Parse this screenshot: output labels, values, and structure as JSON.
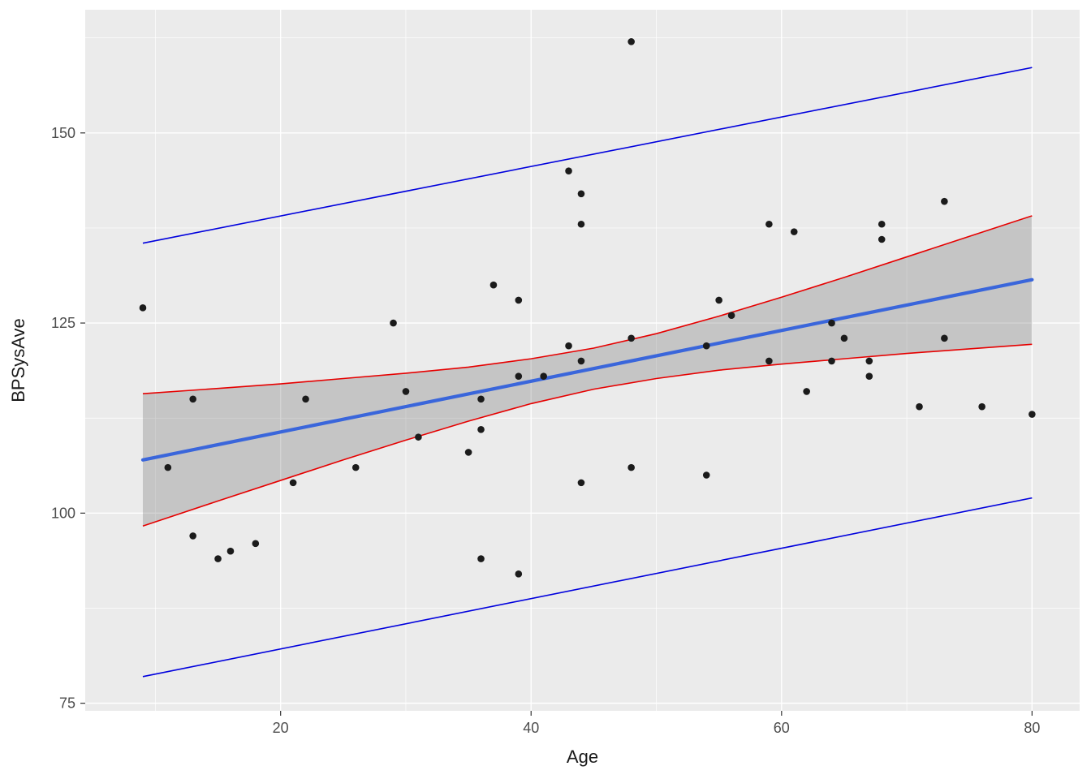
{
  "figure": {
    "background": "#FFFFFF",
    "panel_background": "#EBEBEB",
    "grid_major_color": "#FFFFFF",
    "grid_minor_color": "#FFFFFF",
    "tick_mark_color": "#333333",
    "tick_label_color": "#4D4D4D",
    "axis_title_color": "#1A1A1A"
  },
  "chart_data": {
    "type": "scatter",
    "title": "",
    "xlabel": "Age",
    "ylabel": "BPSysAve",
    "xlim": [
      4.4,
      83.8
    ],
    "ylim": [
      74.0,
      166.2
    ],
    "x_ticks": [
      20,
      40,
      60,
      80
    ],
    "y_ticks": [
      75,
      100,
      125,
      150
    ],
    "x_minor_ticks": [
      10,
      30,
      50,
      70
    ],
    "y_minor_ticks": [
      87.5,
      112.5,
      137.5,
      162.5
    ],
    "grid": true,
    "legend": "none",
    "point_color": "#1B1B1B",
    "point_radius": 4.3,
    "points": [
      [
        9,
        127
      ],
      [
        11,
        106
      ],
      [
        13,
        115
      ],
      [
        13,
        97
      ],
      [
        15,
        94
      ],
      [
        16,
        95
      ],
      [
        18,
        96
      ],
      [
        21,
        104
      ],
      [
        22,
        115
      ],
      [
        26,
        106
      ],
      [
        29,
        125
      ],
      [
        30,
        116
      ],
      [
        31,
        110
      ],
      [
        35,
        108
      ],
      [
        36,
        115
      ],
      [
        36,
        94
      ],
      [
        36,
        111
      ],
      [
        37,
        130
      ],
      [
        39,
        128
      ],
      [
        39,
        118
      ],
      [
        39,
        92
      ],
      [
        41,
        118
      ],
      [
        43,
        122
      ],
      [
        43,
        145
      ],
      [
        44,
        142
      ],
      [
        44,
        138
      ],
      [
        44,
        120
      ],
      [
        44,
        104
      ],
      [
        48,
        162
      ],
      [
        48,
        123
      ],
      [
        48,
        106
      ],
      [
        54,
        122
      ],
      [
        54,
        105
      ],
      [
        55,
        128
      ],
      [
        56,
        126
      ],
      [
        59,
        138
      ],
      [
        59,
        120
      ],
      [
        61,
        137
      ],
      [
        62,
        116
      ],
      [
        64,
        125
      ],
      [
        64,
        120
      ],
      [
        65,
        123
      ],
      [
        67,
        120
      ],
      [
        67,
        118
      ],
      [
        68,
        136
      ],
      [
        68,
        138
      ],
      [
        71,
        114
      ],
      [
        73,
        141
      ],
      [
        73,
        123
      ],
      [
        76,
        114
      ],
      [
        80,
        113
      ]
    ],
    "regression_line": {
      "color": "#3A66DB",
      "width": 4.2,
      "x": [
        9,
        80
      ],
      "y": [
        107.0,
        130.7
      ]
    },
    "confidence_band": {
      "line_color": "#E60000",
      "line_width": 1.6,
      "fill": "rgba(110,110,110,0.30)",
      "x": [
        9,
        15,
        20,
        25,
        30,
        35,
        40,
        45,
        50,
        55,
        60,
        65,
        70,
        75,
        80
      ],
      "lower": [
        98.3,
        101.6,
        104.3,
        107.0,
        109.6,
        112.1,
        114.4,
        116.3,
        117.7,
        118.8,
        119.6,
        120.3,
        121.0,
        121.6,
        122.2
      ],
      "upper": [
        115.7,
        116.4,
        117.0,
        117.7,
        118.4,
        119.2,
        120.3,
        121.7,
        123.6,
        125.9,
        128.4,
        131.0,
        133.7,
        136.4,
        139.1
      ]
    },
    "prediction_band": {
      "line_color": "#0000DD",
      "line_width": 1.6,
      "x": [
        9,
        80
      ],
      "lower": [
        78.5,
        102.0
      ],
      "upper": [
        135.5,
        158.6
      ]
    }
  }
}
